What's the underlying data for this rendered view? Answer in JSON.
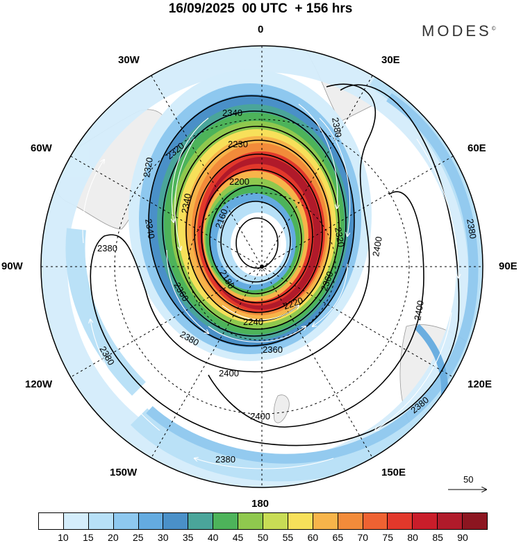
{
  "title": "16/09/2025  00 UTC  + 156 hrs",
  "brand": {
    "name": "MODES",
    "mark": "©"
  },
  "longitude_labels": [
    {
      "id": "lon-0",
      "text": "0"
    },
    {
      "id": "lon-30e",
      "text": "30E"
    },
    {
      "id": "lon-60e",
      "text": "60E"
    },
    {
      "id": "lon-90e",
      "text": "90E"
    },
    {
      "id": "lon-120e",
      "text": "120E"
    },
    {
      "id": "lon-150e",
      "text": "150E"
    },
    {
      "id": "lon-180",
      "text": "180"
    },
    {
      "id": "lon-150w",
      "text": "150W"
    },
    {
      "id": "lon-120w",
      "text": "120W"
    },
    {
      "id": "lon-90w",
      "text": "90W"
    },
    {
      "id": "lon-60w",
      "text": "60W"
    },
    {
      "id": "lon-30w",
      "text": "30W"
    }
  ],
  "contour_labels": [
    {
      "id": "c1",
      "text": "2340"
    },
    {
      "id": "c2",
      "text": "2230"
    },
    {
      "id": "c3",
      "text": "2200"
    },
    {
      "id": "c4",
      "text": "2160"
    },
    {
      "id": "c5",
      "text": "2180"
    },
    {
      "id": "c6",
      "text": "2220"
    },
    {
      "id": "c7",
      "text": "2240"
    },
    {
      "id": "c8",
      "text": "2360"
    },
    {
      "id": "c9",
      "text": "2380"
    },
    {
      "id": "c10",
      "text": "2400"
    },
    {
      "id": "c11",
      "text": "2380"
    },
    {
      "id": "c12",
      "text": "2400"
    },
    {
      "id": "c13",
      "text": "2400"
    },
    {
      "id": "c14",
      "text": "2380"
    },
    {
      "id": "c15",
      "text": "2380"
    },
    {
      "id": "c16",
      "text": "2380"
    },
    {
      "id": "c17",
      "text": "2360"
    },
    {
      "id": "c18",
      "text": "2360"
    },
    {
      "id": "c19",
      "text": "2320"
    },
    {
      "id": "c20",
      "text": "2320"
    },
    {
      "id": "c21",
      "text": "2340"
    },
    {
      "id": "c22",
      "text": "2380"
    },
    {
      "id": "c23",
      "text": "2380"
    },
    {
      "id": "c24",
      "text": "2400"
    },
    {
      "id": "c25",
      "text": "2340"
    },
    {
      "id": "c26",
      "text": "2320"
    }
  ],
  "colors": {
    "levels": [
      "#ffffff",
      "#d4edfb",
      "#b7e0f7",
      "#8ec8ef",
      "#64abe0",
      "#4a90c8",
      "#4aa59a",
      "#4db35a",
      "#8fc84e",
      "#c8dc55",
      "#f7e05a",
      "#f7b44a",
      "#f28b3a",
      "#ee6232",
      "#e2382b",
      "#c91d2a",
      "#b01a2a",
      "#8c1520"
    ]
  },
  "legend": {
    "ticks": [
      "10",
      "15",
      "20",
      "25",
      "30",
      "35",
      "40",
      "45",
      "50",
      "55",
      "60",
      "65",
      "70",
      "75",
      "80",
      "85",
      "90"
    ]
  },
  "scale": {
    "label": "50"
  }
}
